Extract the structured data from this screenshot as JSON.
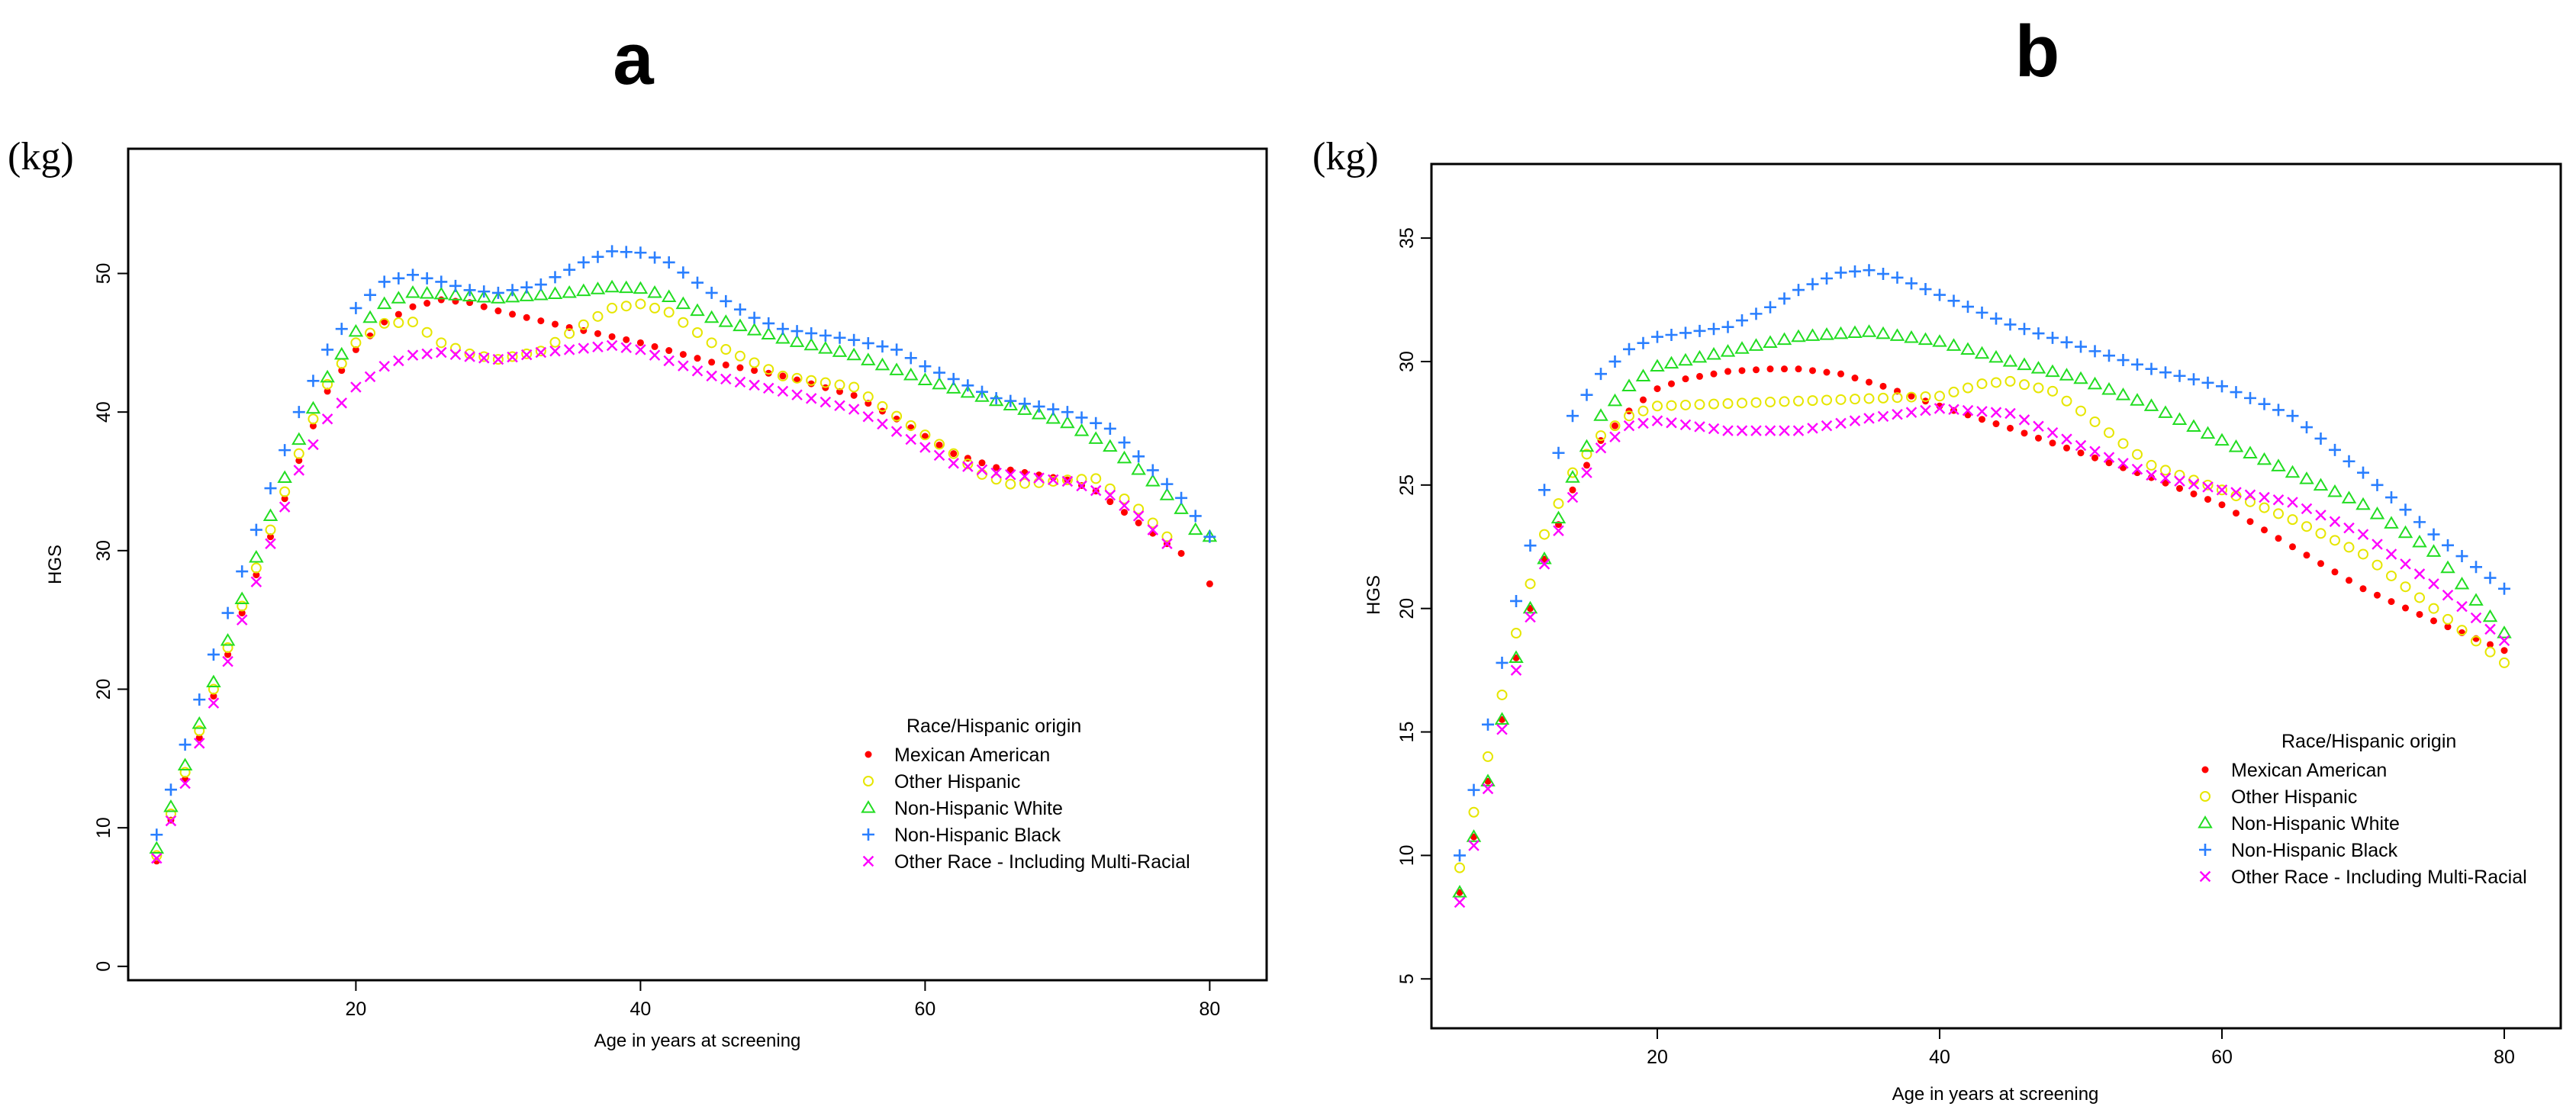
{
  "figure": {
    "colors": {
      "Mexican American": "#ff0000",
      "Other Hispanic": "#e6e600",
      "Non-Hispanic White": "#22dd22",
      "Non-Hispanic Black": "#2a7fff",
      "Other Race - Including Multi-Racial": "#ff00ff"
    },
    "markers": {
      "Mexican American": "dot",
      "Other Hispanic": "circle",
      "Non-Hispanic White": "triangle",
      "Non-Hispanic Black": "plus",
      "Other Race - Including Multi-Racial": "cross"
    }
  },
  "chart_data": [
    {
      "type": "scatter",
      "panel": "a",
      "unit": "(kg)",
      "title": "",
      "xlabel": "Age in years at screening",
      "ylabel": "HGS",
      "xlim": [
        4,
        84
      ],
      "ylim": [
        -1,
        59
      ],
      "xticks": [
        20,
        40,
        60,
        80
      ],
      "yticks": [
        0,
        10,
        20,
        30,
        40,
        50
      ],
      "legend_title": "Race/Hispanic origin",
      "legend_position": "bottom-right",
      "series": [
        {
          "name": "Mexican American",
          "anchors": [
            [
              6,
              7.6
            ],
            [
              8,
              13.5
            ],
            [
              10,
              19.5
            ],
            [
              12,
              25.5
            ],
            [
              14,
              31
            ],
            [
              16,
              36.5
            ],
            [
              18,
              41.5
            ],
            [
              20,
              44.5
            ],
            [
              22,
              46.5
            ],
            [
              24,
              47.6
            ],
            [
              26,
              48.1
            ],
            [
              28,
              47.9
            ],
            [
              30,
              47.3
            ],
            [
              35,
              46.1
            ],
            [
              40,
              45
            ],
            [
              45,
              43.6
            ],
            [
              50,
              42.6
            ],
            [
              55,
              41.2
            ],
            [
              58,
              39.5
            ],
            [
              62,
              37
            ],
            [
              65,
              36
            ],
            [
              70,
              35.1
            ],
            [
              72,
              34.3
            ],
            [
              75,
              32
            ],
            [
              77,
              30.5
            ],
            [
              78,
              29.8
            ]
          ],
          "extra_points": [
            [
              80,
              27.6
            ]
          ]
        },
        {
          "name": "Other Hispanic",
          "anchors": [
            [
              6,
              8
            ],
            [
              8,
              14
            ],
            [
              10,
              20
            ],
            [
              12,
              26
            ],
            [
              14,
              31.5
            ],
            [
              16,
              37
            ],
            [
              18,
              42
            ],
            [
              20,
              45
            ],
            [
              22,
              46.4
            ],
            [
              24,
              46.5
            ],
            [
              26,
              45
            ],
            [
              28,
              44.2
            ],
            [
              30,
              43.8
            ],
            [
              33,
              44.4
            ],
            [
              36,
              46.3
            ],
            [
              38,
              47.5
            ],
            [
              40,
              47.8
            ],
            [
              42,
              47.2
            ],
            [
              45,
              45
            ],
            [
              50,
              42.6
            ],
            [
              55,
              41.8
            ],
            [
              58,
              39.7
            ],
            [
              62,
              37
            ],
            [
              64,
              35.5
            ],
            [
              66,
              34.8
            ],
            [
              68,
              34.9
            ],
            [
              70,
              35.1
            ],
            [
              72,
              35.2
            ],
            [
              75,
              33
            ],
            [
              77,
              31
            ]
          ],
          "extra_points": []
        },
        {
          "name": "Non-Hispanic White",
          "anchors": [
            [
              6,
              8.5
            ],
            [
              8,
              14.5
            ],
            [
              10,
              20.5
            ],
            [
              12,
              26.5
            ],
            [
              14,
              32.5
            ],
            [
              16,
              38
            ],
            [
              18,
              42.5
            ],
            [
              20,
              45.8
            ],
            [
              22,
              47.8
            ],
            [
              24,
              48.6
            ],
            [
              26,
              48.5
            ],
            [
              30,
              48.2
            ],
            [
              35,
              48.6
            ],
            [
              38,
              49
            ],
            [
              40,
              48.9
            ],
            [
              42,
              48.3
            ],
            [
              45,
              46.8
            ],
            [
              50,
              45.3
            ],
            [
              55,
              44.1
            ],
            [
              60,
              42.3
            ],
            [
              65,
              40.8
            ],
            [
              70,
              39.2
            ],
            [
              73,
              37.5
            ],
            [
              76,
              35
            ],
            [
              78,
              33
            ],
            [
              79,
              31.5
            ]
          ],
          "extra_points": [
            [
              80,
              31
            ]
          ]
        },
        {
          "name": "Non-Hispanic Black",
          "anchors": [
            [
              6,
              9.5
            ],
            [
              8,
              16
            ],
            [
              10,
              22.5
            ],
            [
              12,
              28.5
            ],
            [
              14,
              34.5
            ],
            [
              16,
              40
            ],
            [
              18,
              44.5
            ],
            [
              20,
              47.5
            ],
            [
              22,
              49.4
            ],
            [
              24,
              49.9
            ],
            [
              26,
              49.4
            ],
            [
              28,
              48.8
            ],
            [
              30,
              48.6
            ],
            [
              33,
              49.2
            ],
            [
              36,
              50.8
            ],
            [
              38,
              51.6
            ],
            [
              40,
              51.5
            ],
            [
              42,
              50.8
            ],
            [
              45,
              48.6
            ],
            [
              48,
              46.8
            ],
            [
              50,
              46
            ],
            [
              55,
              45.2
            ],
            [
              58,
              44.5
            ],
            [
              60,
              43.3
            ],
            [
              65,
              41
            ],
            [
              70,
              40
            ],
            [
              73,
              38.8
            ],
            [
              76,
              35.8
            ],
            [
              78,
              33.8
            ],
            [
              79,
              32.5
            ]
          ],
          "extra_points": [
            [
              80,
              31
            ]
          ]
        },
        {
          "name": "Other Race - Including Multi-Racial",
          "anchors": [
            [
              6,
              7.8
            ],
            [
              8,
              13.2
            ],
            [
              10,
              19
            ],
            [
              12,
              25
            ],
            [
              14,
              30.5
            ],
            [
              16,
              35.8
            ],
            [
              18,
              39.5
            ],
            [
              20,
              41.8
            ],
            [
              22,
              43.3
            ],
            [
              24,
              44.1
            ],
            [
              26,
              44.3
            ],
            [
              28,
              44
            ],
            [
              30,
              43.8
            ],
            [
              33,
              44.3
            ],
            [
              36,
              44.6
            ],
            [
              38,
              44.8
            ],
            [
              40,
              44.5
            ],
            [
              42,
              43.7
            ],
            [
              45,
              42.6
            ],
            [
              50,
              41.5
            ],
            [
              55,
              40.2
            ],
            [
              58,
              38.6
            ],
            [
              62,
              36.3
            ],
            [
              65,
              35.6
            ],
            [
              70,
              35
            ],
            [
              73,
              34
            ],
            [
              75,
              32.5
            ],
            [
              77,
              30.5
            ]
          ],
          "extra_points": []
        }
      ]
    },
    {
      "type": "scatter",
      "panel": "b",
      "unit": "(kg)",
      "title": "",
      "xlabel": "Age in years at screening",
      "ylabel": "HGS",
      "xlim": [
        4,
        84
      ],
      "ylim": [
        3,
        38
      ],
      "xticks": [
        20,
        40,
        60,
        80
      ],
      "yticks": [
        5,
        10,
        15,
        20,
        25,
        30,
        35
      ],
      "legend_title": "Race/Hispanic origin",
      "legend_position": "bottom-right",
      "series": [
        {
          "name": "Mexican American",
          "anchors": [
            [
              6,
              8.5
            ],
            [
              8,
              13
            ],
            [
              10,
              18
            ],
            [
              12,
              22
            ],
            [
              14,
              24.8
            ],
            [
              16,
              26.8
            ],
            [
              18,
              28
            ],
            [
              20,
              28.9
            ],
            [
              22,
              29.3
            ],
            [
              25,
              29.6
            ],
            [
              28,
              29.7
            ],
            [
              30,
              29.7
            ],
            [
              33,
              29.5
            ],
            [
              36,
              29
            ],
            [
              40,
              28.2
            ],
            [
              45,
              27.3
            ],
            [
              50,
              26.3
            ],
            [
              55,
              25.3
            ],
            [
              60,
              24.2
            ],
            [
              65,
              22.5
            ],
            [
              70,
              20.8
            ],
            [
              75,
              19.5
            ],
            [
              80,
              18.3
            ]
          ],
          "extra_points": []
        },
        {
          "name": "Other Hispanic",
          "anchors": [
            [
              6,
              9.5
            ],
            [
              8,
              14
            ],
            [
              10,
              19
            ],
            [
              12,
              23
            ],
            [
              14,
              25.5
            ],
            [
              16,
              27
            ],
            [
              18,
              27.8
            ],
            [
              20,
              28.2
            ],
            [
              25,
              28.3
            ],
            [
              30,
              28.4
            ],
            [
              35,
              28.5
            ],
            [
              40,
              28.6
            ],
            [
              43,
              29.1
            ],
            [
              45,
              29.2
            ],
            [
              48,
              28.8
            ],
            [
              50,
              28
            ],
            [
              55,
              25.8
            ],
            [
              60,
              24.8
            ],
            [
              65,
              23.6
            ],
            [
              70,
              22.2
            ],
            [
              75,
              20
            ],
            [
              80,
              17.8
            ]
          ],
          "extra_points": []
        },
        {
          "name": "Non-Hispanic White",
          "anchors": [
            [
              6,
              8.5
            ],
            [
              8,
              13
            ],
            [
              10,
              18
            ],
            [
              12,
              22
            ],
            [
              14,
              25.3
            ],
            [
              16,
              27.8
            ],
            [
              18,
              29
            ],
            [
              20,
              29.8
            ],
            [
              25,
              30.4
            ],
            [
              30,
              31
            ],
            [
              35,
              31.2
            ],
            [
              40,
              30.8
            ],
            [
              45,
              30
            ],
            [
              50,
              29.3
            ],
            [
              55,
              28.2
            ],
            [
              60,
              26.8
            ],
            [
              65,
              25.5
            ],
            [
              70,
              24.2
            ],
            [
              75,
              22.3
            ],
            [
              80,
              19
            ]
          ],
          "extra_points": []
        },
        {
          "name": "Non-Hispanic Black",
          "anchors": [
            [
              6,
              10
            ],
            [
              8,
              15.3
            ],
            [
              10,
              20.3
            ],
            [
              12,
              24.8
            ],
            [
              14,
              27.8
            ],
            [
              16,
              29.5
            ],
            [
              18,
              30.5
            ],
            [
              20,
              31
            ],
            [
              25,
              31.4
            ],
            [
              28,
              32.2
            ],
            [
              30,
              32.9
            ],
            [
              33,
              33.6
            ],
            [
              35,
              33.7
            ],
            [
              37,
              33.4
            ],
            [
              40,
              32.7
            ],
            [
              45,
              31.5
            ],
            [
              50,
              30.6
            ],
            [
              55,
              29.7
            ],
            [
              60,
              29
            ],
            [
              65,
              27.8
            ],
            [
              70,
              25.5
            ],
            [
              75,
              23
            ],
            [
              80,
              20.8
            ]
          ],
          "extra_points": []
        },
        {
          "name": "Other Race - Including Multi-Racial",
          "anchors": [
            [
              6,
              8.1
            ],
            [
              8,
              12.7
            ],
            [
              10,
              17.5
            ],
            [
              12,
              21.8
            ],
            [
              14,
              24.5
            ],
            [
              16,
              26.5
            ],
            [
              18,
              27.4
            ],
            [
              20,
              27.6
            ],
            [
              25,
              27.2
            ],
            [
              30,
              27.2
            ],
            [
              35,
              27.7
            ],
            [
              40,
              28.1
            ],
            [
              45,
              27.9
            ],
            [
              50,
              26.6
            ],
            [
              55,
              25.4
            ],
            [
              60,
              24.8
            ],
            [
              65,
              24.3
            ],
            [
              70,
              23
            ],
            [
              75,
              21
            ],
            [
              80,
              18.7
            ]
          ],
          "extra_points": []
        }
      ]
    }
  ]
}
